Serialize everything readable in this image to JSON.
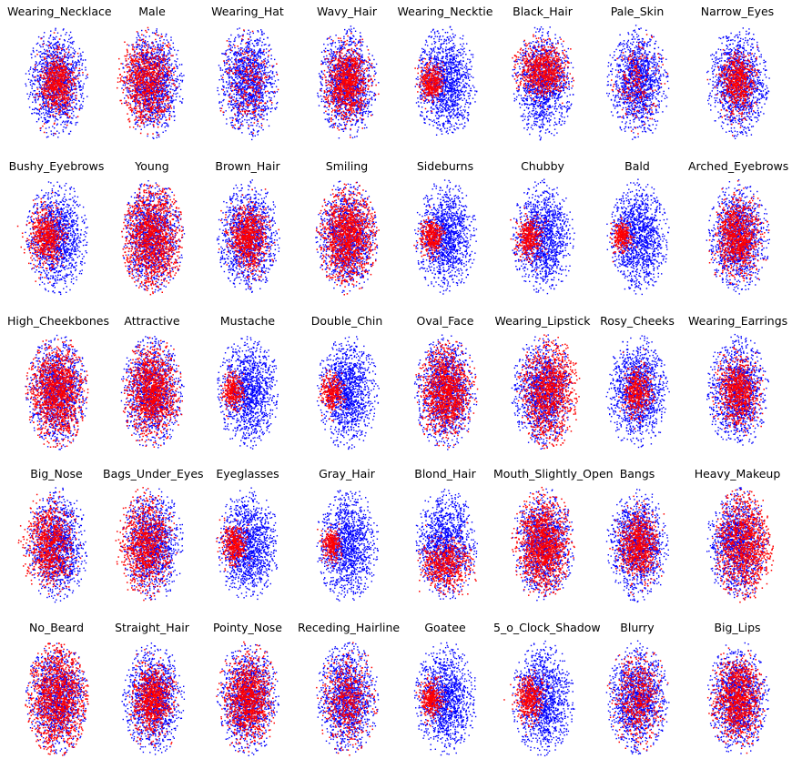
{
  "colors": {
    "negative": "#0000ff",
    "positive": "#ff0000",
    "background": "#ffffff"
  },
  "chart_data": {
    "type": "scatter",
    "layout": {
      "rows": 5,
      "cols": 8
    },
    "axes": "off",
    "series": [
      {
        "name": "",
        "color": "#0000ff"
      },
      {
        "name": "",
        "color": "#ff0000"
      }
    ],
    "panels": [
      {
        "title": "Wearing_Necklace",
        "positive_fraction": 0.3,
        "region": "center"
      },
      {
        "title": "Male",
        "positive_fraction": 0.45,
        "region": "left"
      },
      {
        "title": "Wearing_Hat",
        "positive_fraction": 0.1,
        "region": "scattered"
      },
      {
        "title": "Wavy_Hair",
        "positive_fraction": 0.45,
        "region": "center"
      },
      {
        "title": "Wearing_Necktie",
        "positive_fraction": 0.1,
        "region": "left"
      },
      {
        "title": "Black_Hair",
        "positive_fraction": 0.35,
        "region": "top"
      },
      {
        "title": "Pale_Skin",
        "positive_fraction": 0.08,
        "region": "scattered"
      },
      {
        "title": "Narrow_Eyes",
        "positive_fraction": 0.25,
        "region": "center"
      },
      {
        "title": "Bushy_Eyebrows",
        "positive_fraction": 0.25,
        "region": "left"
      },
      {
        "title": "Young",
        "positive_fraction": 0.8,
        "region": "center"
      },
      {
        "title": "Brown_Hair",
        "positive_fraction": 0.35,
        "region": "center"
      },
      {
        "title": "Smiling",
        "positive_fraction": 0.7,
        "region": "center"
      },
      {
        "title": "Sideburns",
        "positive_fraction": 0.1,
        "region": "left"
      },
      {
        "title": "Chubby",
        "positive_fraction": 0.12,
        "region": "left"
      },
      {
        "title": "Bald",
        "positive_fraction": 0.05,
        "region": "left"
      },
      {
        "title": "Arched_Eyebrows",
        "positive_fraction": 0.45,
        "region": "center"
      },
      {
        "title": "High_Cheekbones",
        "positive_fraction": 0.7,
        "region": "center"
      },
      {
        "title": "Attractive",
        "positive_fraction": 0.6,
        "region": "center"
      },
      {
        "title": "Mustache",
        "positive_fraction": 0.08,
        "region": "left"
      },
      {
        "title": "Double_Chin",
        "positive_fraction": 0.08,
        "region": "left"
      },
      {
        "title": "Oval_Face",
        "positive_fraction": 0.6,
        "region": "center"
      },
      {
        "title": "Wearing_Lipstick",
        "positive_fraction": 0.55,
        "region": "right"
      },
      {
        "title": "Rosy_Cheeks",
        "positive_fraction": 0.15,
        "region": "center"
      },
      {
        "title": "Wearing_Earrings",
        "positive_fraction": 0.35,
        "region": "center"
      },
      {
        "title": "Big_Nose",
        "positive_fraction": 0.4,
        "region": "left"
      },
      {
        "title": "Bags_Under_Eyes",
        "positive_fraction": 0.45,
        "region": "left"
      },
      {
        "title": "Eyeglasses",
        "positive_fraction": 0.12,
        "region": "left"
      },
      {
        "title": "Gray_Hair",
        "positive_fraction": 0.06,
        "region": "left"
      },
      {
        "title": "Blond_Hair",
        "positive_fraction": 0.25,
        "region": "bottom"
      },
      {
        "title": "Mouth_Slightly_Open",
        "positive_fraction": 0.7,
        "region": "center"
      },
      {
        "title": "Bangs",
        "positive_fraction": 0.35,
        "region": "center"
      },
      {
        "title": "Heavy_Makeup",
        "positive_fraction": 0.55,
        "region": "right"
      },
      {
        "title": "No_Beard",
        "positive_fraction": 0.9,
        "region": "center"
      },
      {
        "title": "Straight_Hair",
        "positive_fraction": 0.4,
        "region": "center"
      },
      {
        "title": "Pointy_Nose",
        "positive_fraction": 0.55,
        "region": "center"
      },
      {
        "title": "Receding_Hairline",
        "positive_fraction": 0.2,
        "region": "scattered"
      },
      {
        "title": "Goatee",
        "positive_fraction": 0.1,
        "region": "left"
      },
      {
        "title": "5_o_Clock_Shadow",
        "positive_fraction": 0.15,
        "region": "left"
      },
      {
        "title": "Blurry",
        "positive_fraction": 0.2,
        "region": "scattered"
      },
      {
        "title": "Big_Lips",
        "positive_fraction": 0.5,
        "region": "center"
      }
    ]
  }
}
